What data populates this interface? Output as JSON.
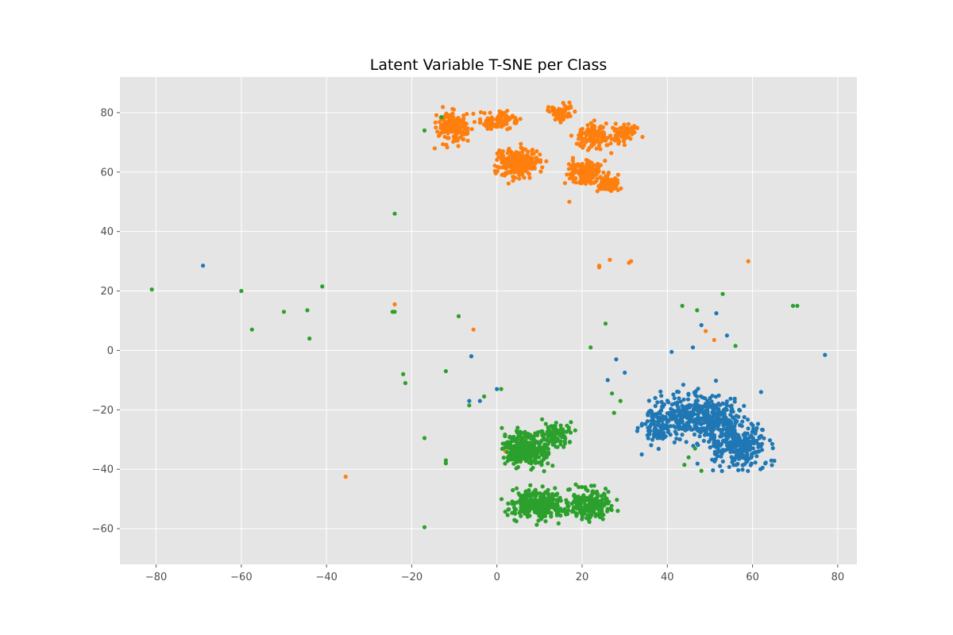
{
  "chart_data": {
    "type": "scatter",
    "title": "Latent Variable T-SNE per Class",
    "xlabel": "",
    "ylabel": "",
    "xlim": [
      -88.5,
      84.5
    ],
    "ylim": [
      -72,
      92
    ],
    "xticks": [
      -80,
      -60,
      -40,
      -20,
      0,
      20,
      40,
      60,
      80
    ],
    "yticks": [
      -60,
      -40,
      -20,
      0,
      20,
      40,
      60,
      80
    ],
    "grid": true,
    "background": "#e5e5e5",
    "grid_color": "#ffffff",
    "legend": "none",
    "series": [
      {
        "color": "#1f77b4",
        "clusters": [
          {
            "center": [
              48,
              -22
            ],
            "spread": [
              10,
              8
            ],
            "count": 420
          },
          {
            "center": [
              57,
              -33
            ],
            "spread": [
              8,
              7
            ],
            "count": 260
          },
          {
            "center": [
              38,
              -25
            ],
            "spread": [
              4,
              6
            ],
            "count": 120
          }
        ],
        "outliers": [
          [
            -69,
            28.5
          ],
          [
            -6,
            -2
          ],
          [
            0,
            -13
          ],
          [
            -4,
            -17
          ],
          [
            -6.5,
            -17
          ],
          [
            26,
            -10
          ],
          [
            30,
            -7.5
          ],
          [
            28,
            -3
          ],
          [
            41,
            -0.5
          ],
          [
            46,
            1
          ],
          [
            48,
            8.5
          ],
          [
            51.5,
            12.5
          ],
          [
            54,
            5
          ],
          [
            77,
            -1.5
          ],
          [
            34,
            -35
          ],
          [
            62,
            -14
          ]
        ]
      },
      {
        "color": "#ff7f0e",
        "clusters": [
          {
            "center": [
              -10,
              75
            ],
            "spread": [
              4,
              5
            ],
            "count": 160
          },
          {
            "center": [
              0,
              77
            ],
            "spread": [
              5,
              3
            ],
            "count": 90
          },
          {
            "center": [
              5,
              63
            ],
            "spread": [
              5,
              5
            ],
            "count": 230
          },
          {
            "center": [
              15,
              80
            ],
            "spread": [
              3,
              3
            ],
            "count": 70
          },
          {
            "center": [
              23,
              72
            ],
            "spread": [
              4,
              4
            ],
            "count": 120
          },
          {
            "center": [
              30,
              73
            ],
            "spread": [
              3,
              3
            ],
            "count": 80
          },
          {
            "center": [
              21,
              60
            ],
            "spread": [
              4,
              4
            ],
            "count": 150
          },
          {
            "center": [
              26,
              56
            ],
            "spread": [
              3,
              3
            ],
            "count": 80
          }
        ],
        "outliers": [
          [
            -24,
            15.5
          ],
          [
            -5.5,
            7
          ],
          [
            24,
            28
          ],
          [
            24,
            28.5
          ],
          [
            26.5,
            30.5
          ],
          [
            31,
            29.5
          ],
          [
            31.5,
            30
          ],
          [
            59,
            30
          ],
          [
            49,
            6.5
          ],
          [
            51,
            3.5
          ],
          [
            -35.5,
            -42.5
          ],
          [
            2,
            -34
          ],
          [
            5.5,
            -37.5
          ],
          [
            17,
            50
          ]
        ]
      },
      {
        "color": "#2ca02c",
        "clusters": [
          {
            "center": [
              7,
              -33
            ],
            "spread": [
              6,
              6
            ],
            "count": 320
          },
          {
            "center": [
              10,
              -52
            ],
            "spread": [
              7,
              5
            ],
            "count": 300
          },
          {
            "center": [
              22,
              -52
            ],
            "spread": [
              5,
              5
            ],
            "count": 200
          },
          {
            "center": [
              14,
              -28
            ],
            "spread": [
              4,
              4
            ],
            "count": 90
          }
        ],
        "outliers": [
          [
            -81,
            20.5
          ],
          [
            -60,
            20
          ],
          [
            -57.5,
            7
          ],
          [
            -50,
            13
          ],
          [
            -44.5,
            13.5
          ],
          [
            -44,
            4
          ],
          [
            -41,
            21.5
          ],
          [
            -24.5,
            13
          ],
          [
            -24,
            13
          ],
          [
            -24,
            46
          ],
          [
            -17,
            74
          ],
          [
            -13,
            78.5
          ],
          [
            -9,
            11.5
          ],
          [
            -12,
            -7
          ],
          [
            -22,
            -8
          ],
          [
            -21.5,
            -11
          ],
          [
            -17,
            -29.5
          ],
          [
            -12,
            -37
          ],
          [
            -12,
            -38
          ],
          [
            -17,
            -59.5
          ],
          [
            -3,
            -15.5
          ],
          [
            -6.5,
            -18.5
          ],
          [
            1,
            -13
          ],
          [
            22,
            1
          ],
          [
            25.5,
            9
          ],
          [
            27,
            -14.5
          ],
          [
            27.5,
            -21
          ],
          [
            29,
            -17
          ],
          [
            43.5,
            15
          ],
          [
            47,
            13.5
          ],
          [
            53,
            19
          ],
          [
            56,
            1.5
          ],
          [
            69.5,
            15
          ],
          [
            70.5,
            15
          ],
          [
            44,
            -38.5
          ],
          [
            45,
            -36
          ],
          [
            46.5,
            -33
          ],
          [
            48,
            -40.5
          ]
        ]
      }
    ]
  }
}
